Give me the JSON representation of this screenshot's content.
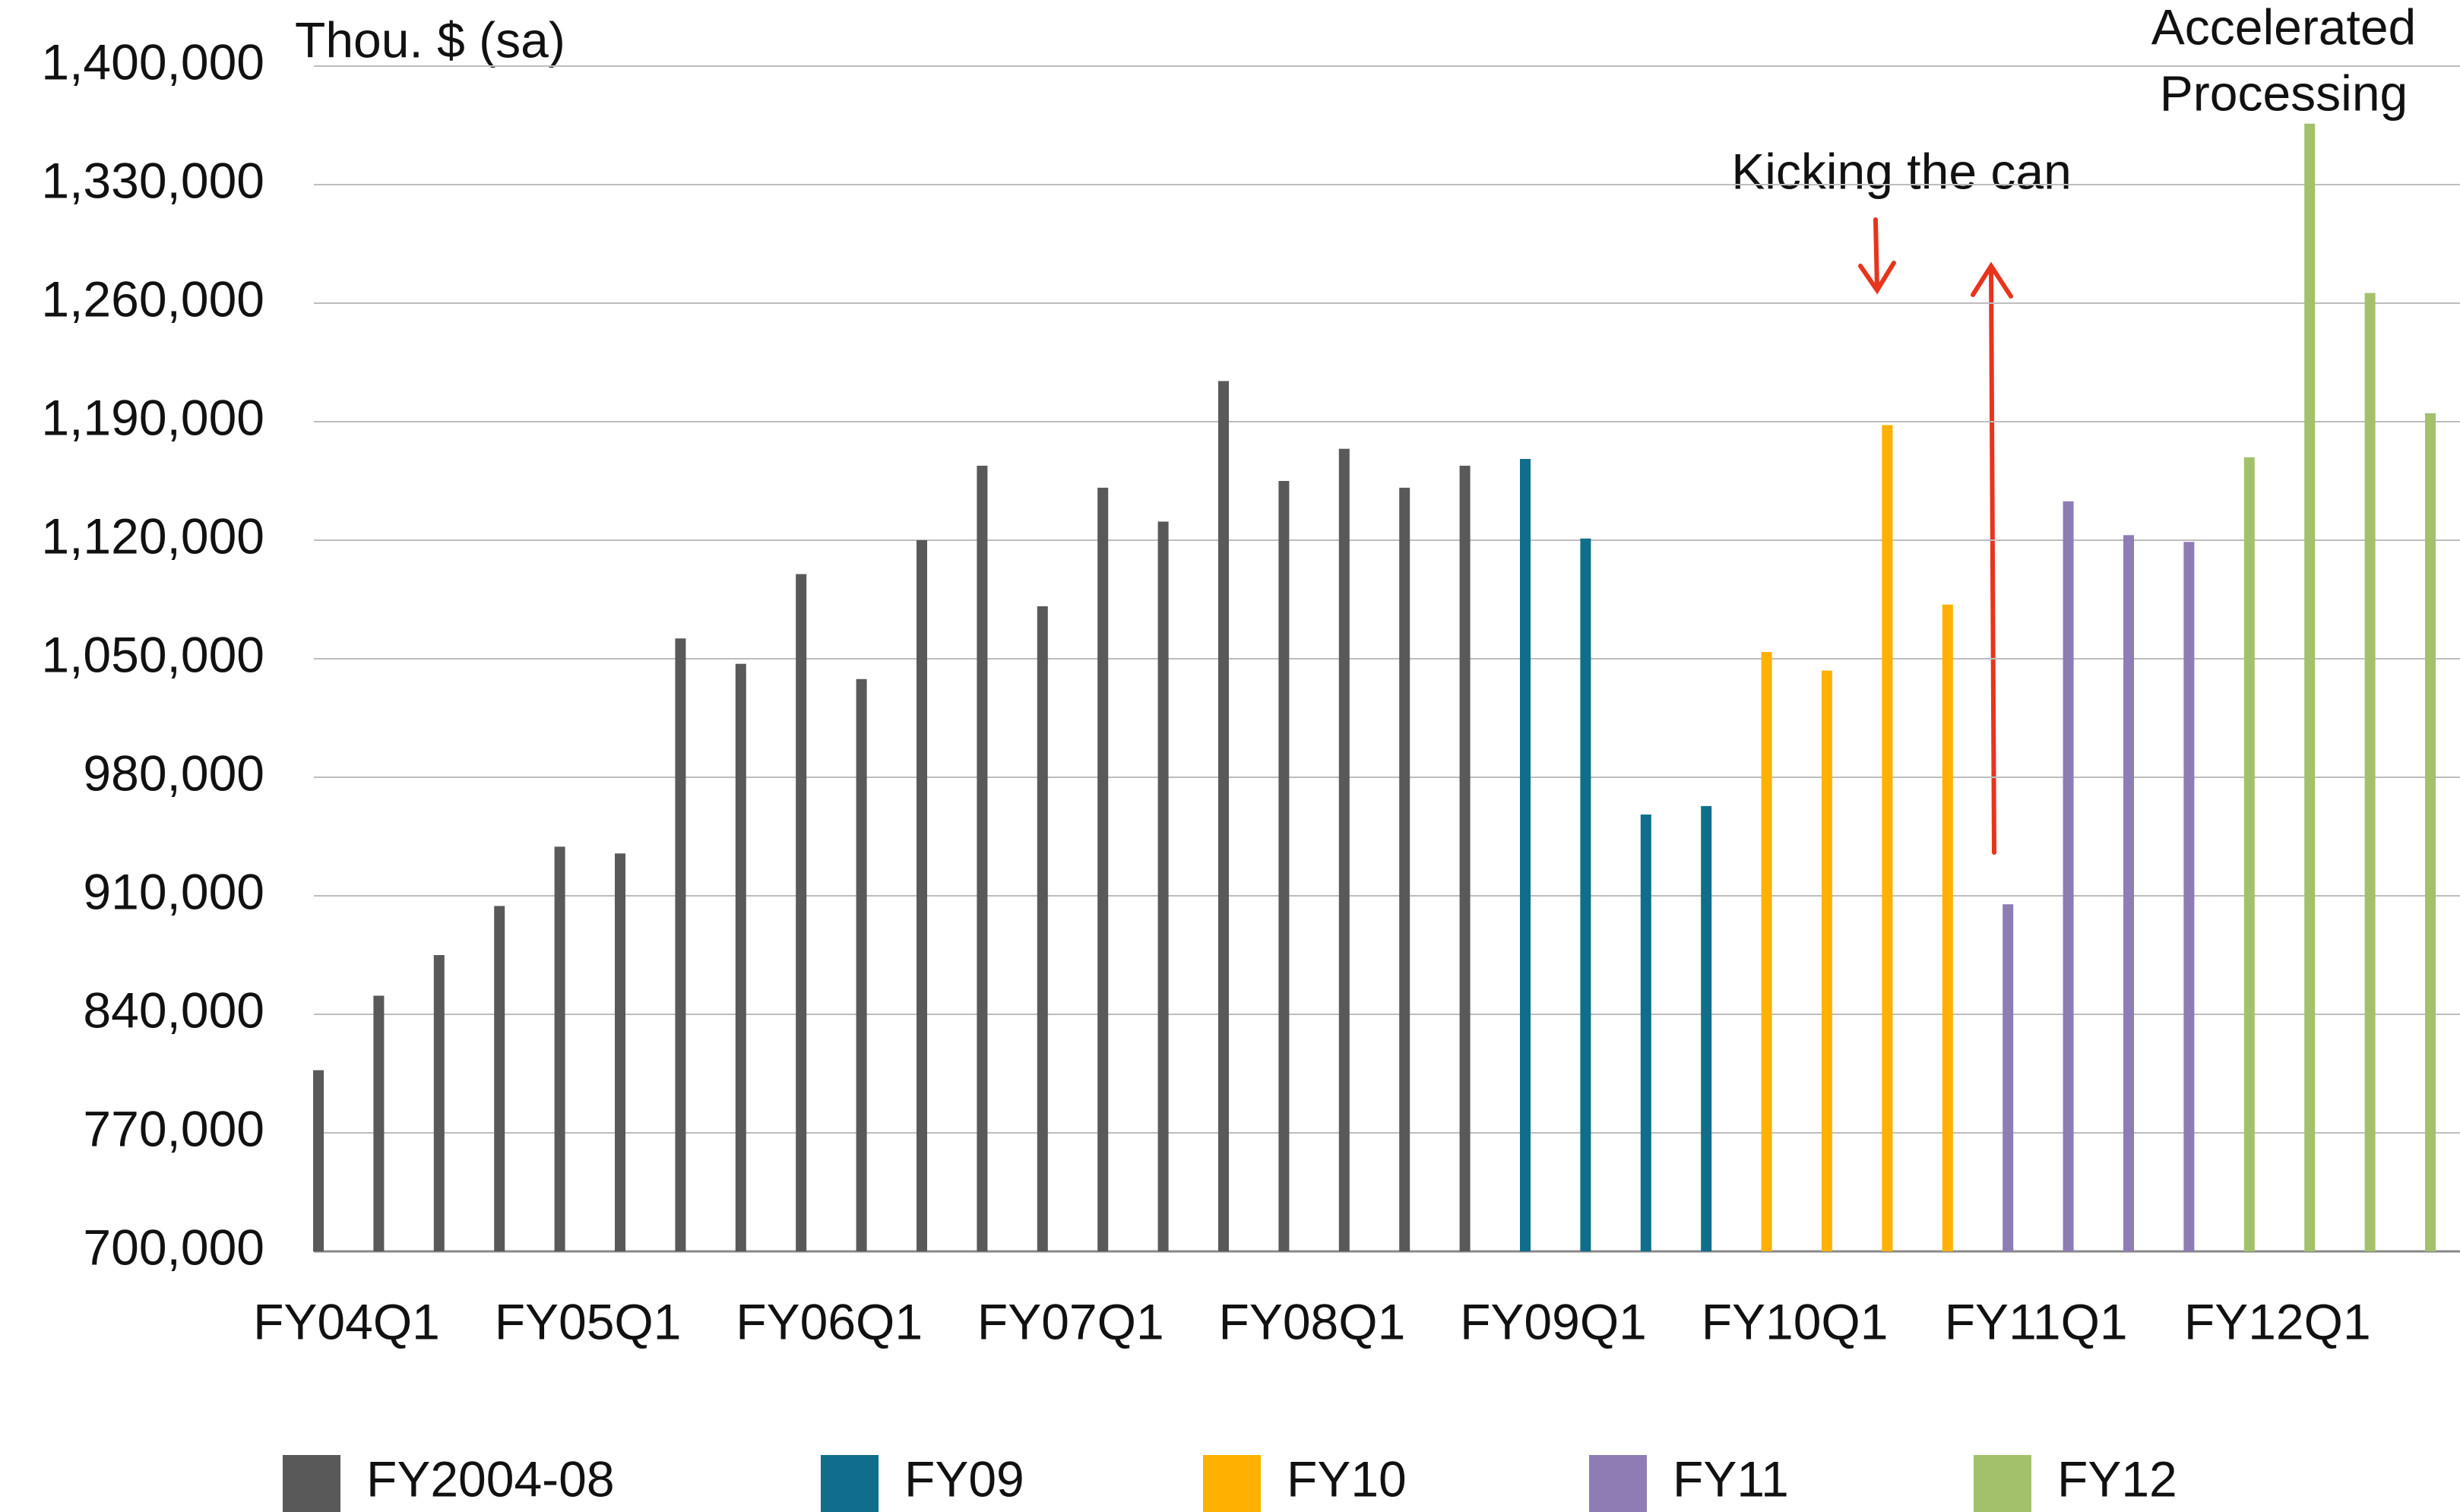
{
  "chart_data": {
    "type": "bar",
    "y_axis_label": "Thou. $ (sa)",
    "annotations": [
      "Kicking the can",
      [
        "Accelerated",
        "Processing"
      ]
    ],
    "categories": [
      "FY04Q1",
      null,
      null,
      null,
      "FY05Q1",
      null,
      null,
      null,
      "FY06Q1",
      null,
      null,
      null,
      "FY07Q1",
      null,
      null,
      null,
      "FY08Q1",
      null,
      null,
      null,
      "FY09Q1",
      null,
      null,
      null,
      "FY10Q1",
      null,
      null,
      null,
      "FY11Q1",
      null,
      null,
      null,
      "FY12Q1",
      null,
      null,
      null
    ],
    "series": [
      {
        "name": "FY2004-08",
        "color": "#595959",
        "values": [
          807000,
          851000,
          875000,
          904000,
          939000,
          935000,
          1062000,
          1047000,
          1100000,
          1038000,
          1120000,
          1164000,
          1081000,
          1151000,
          1131000,
          1214000,
          1155000,
          1174000,
          1151000,
          1164000,
          null,
          null,
          null,
          null,
          null,
          null,
          null,
          null,
          null,
          null,
          null,
          null,
          null,
          null,
          null,
          null
        ]
      },
      {
        "name": "FY09",
        "color": "#0f6e8c",
        "values": [
          null,
          null,
          null,
          null,
          null,
          null,
          null,
          null,
          null,
          null,
          null,
          null,
          null,
          null,
          null,
          null,
          null,
          null,
          null,
          null,
          1168000,
          1121000,
          958000,
          963000,
          null,
          null,
          null,
          null,
          null,
          null,
          null,
          null,
          null,
          null,
          null,
          null
        ]
      },
      {
        "name": "FY10",
        "color": "#ffb000",
        "values": [
          null,
          null,
          null,
          null,
          null,
          null,
          null,
          null,
          null,
          null,
          null,
          null,
          null,
          null,
          null,
          null,
          null,
          null,
          null,
          null,
          null,
          null,
          null,
          null,
          1054000,
          1043000,
          1188000,
          1082000,
          null,
          null,
          null,
          null,
          null,
          null,
          null,
          null
        ]
      },
      {
        "name": "FY11",
        "color": "#8e7cb5",
        "values": [
          null,
          null,
          null,
          null,
          null,
          null,
          null,
          null,
          null,
          null,
          null,
          null,
          null,
          null,
          null,
          null,
          null,
          null,
          null,
          null,
          null,
          null,
          null,
          null,
          null,
          null,
          null,
          null,
          905000,
          1143000,
          1123000,
          1119000,
          null,
          null,
          null,
          null
        ]
      },
      {
        "name": "FY12",
        "color": "#a3c16b",
        "values": [
          null,
          null,
          null,
          null,
          null,
          null,
          null,
          null,
          null,
          null,
          null,
          null,
          null,
          null,
          null,
          null,
          null,
          null,
          null,
          null,
          null,
          null,
          null,
          null,
          null,
          null,
          null,
          null,
          null,
          null,
          null,
          null,
          1169000,
          1366000,
          1266000,
          1195000
        ]
      }
    ],
    "ylim": [
      700000,
      1400000
    ],
    "yticks": [
      {
        "value": 700000,
        "label": "700,000"
      },
      {
        "value": 770000,
        "label": "770,000"
      },
      {
        "value": 840000,
        "label": "840,000"
      },
      {
        "value": 910000,
        "label": "910,000"
      },
      {
        "value": 980000,
        "label": "980,000"
      },
      {
        "value": 1050000,
        "label": "1,050,000"
      },
      {
        "value": 1120000,
        "label": "1,120,000"
      },
      {
        "value": 1190000,
        "label": "1,190,000"
      },
      {
        "value": 1260000,
        "label": "1,260,000"
      },
      {
        "value": 1330000,
        "label": "1,330,000"
      },
      {
        "value": 1400000,
        "label": "1,400,000"
      }
    ],
    "grid": true,
    "legend": "bottom"
  }
}
